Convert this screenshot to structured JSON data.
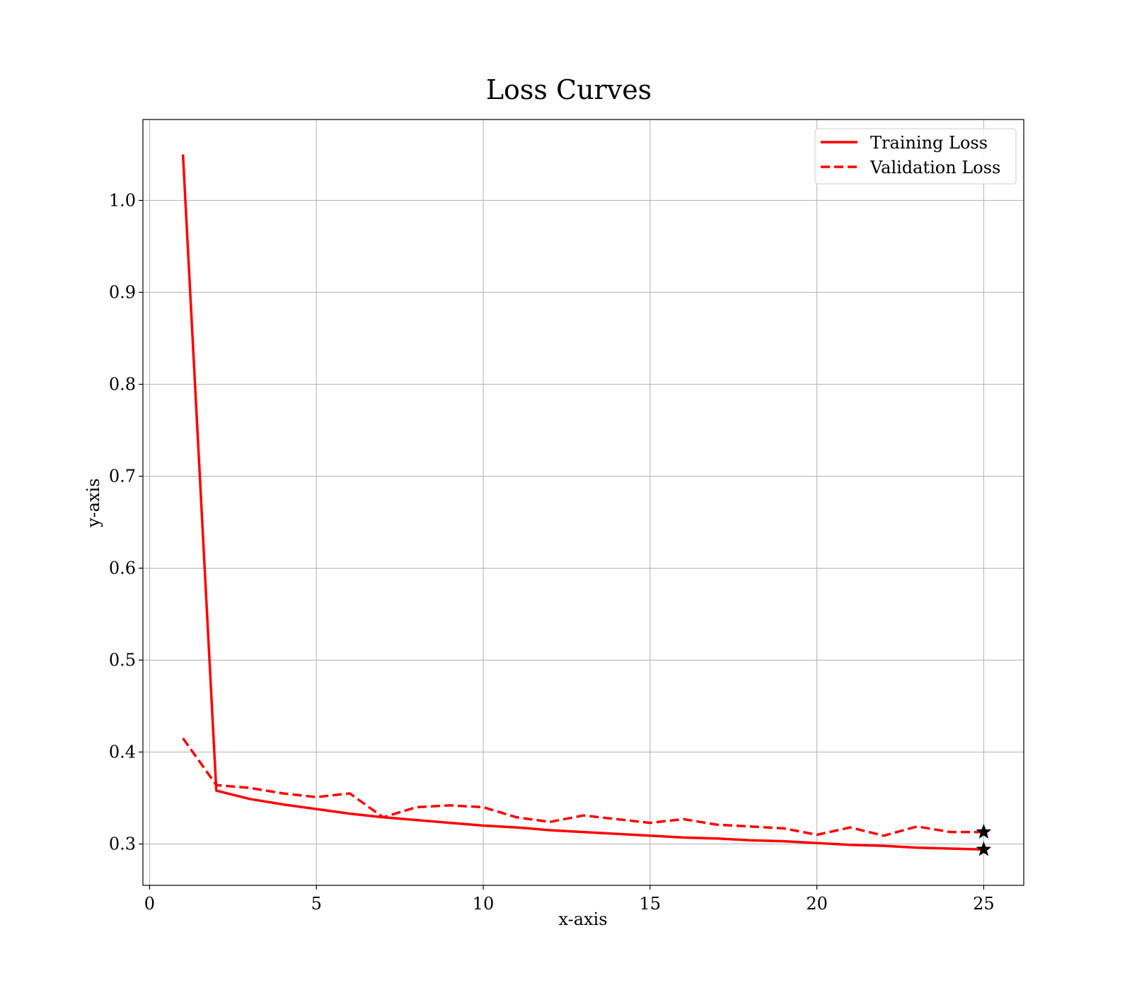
{
  "chart_data": {
    "type": "line",
    "title": "Loss Curves",
    "xlabel": "x-axis",
    "ylabel": "y-axis",
    "xlim": [
      -0.2,
      26.2
    ],
    "ylim": [
      0.255,
      1.088
    ],
    "xticks": [
      0,
      5,
      10,
      15,
      20,
      25
    ],
    "yticks": [
      0.3,
      0.4,
      0.5,
      0.6,
      0.7,
      0.8,
      0.9,
      1.0
    ],
    "xtick_labels": [
      "0",
      "5",
      "10",
      "15",
      "20",
      "25"
    ],
    "ytick_labels": [
      "0.3",
      "0.4",
      "0.5",
      "0.6",
      "0.7",
      "0.8",
      "0.9",
      "1.0"
    ],
    "grid": true,
    "legend_position": "top-right",
    "x": [
      1,
      2,
      3,
      4,
      5,
      6,
      7,
      8,
      9,
      10,
      11,
      12,
      13,
      14,
      15,
      16,
      17,
      18,
      19,
      20,
      21,
      22,
      23,
      24,
      25
    ],
    "series": [
      {
        "name": "Training Loss",
        "style": "solid",
        "color": "#ff0000",
        "values": [
          1.05,
          0.358,
          0.349,
          0.343,
          0.338,
          0.333,
          0.329,
          0.326,
          0.323,
          0.32,
          0.318,
          0.315,
          0.313,
          0.311,
          0.309,
          0.307,
          0.306,
          0.304,
          0.303,
          0.301,
          0.299,
          0.298,
          0.296,
          0.295,
          0.294
        ],
        "marker_last": "star"
      },
      {
        "name": "Validation Loss",
        "style": "dashed",
        "color": "#ff0000",
        "values": [
          0.415,
          0.364,
          0.361,
          0.355,
          0.351,
          0.355,
          0.329,
          0.34,
          0.342,
          0.34,
          0.329,
          0.324,
          0.331,
          0.327,
          0.323,
          0.327,
          0.321,
          0.319,
          0.317,
          0.31,
          0.318,
          0.309,
          0.319,
          0.313,
          0.313
        ],
        "marker_last": "star"
      }
    ],
    "colors": {
      "line": "#ff0000",
      "grid": "#b0b0b0",
      "marker": "#000000"
    }
  }
}
